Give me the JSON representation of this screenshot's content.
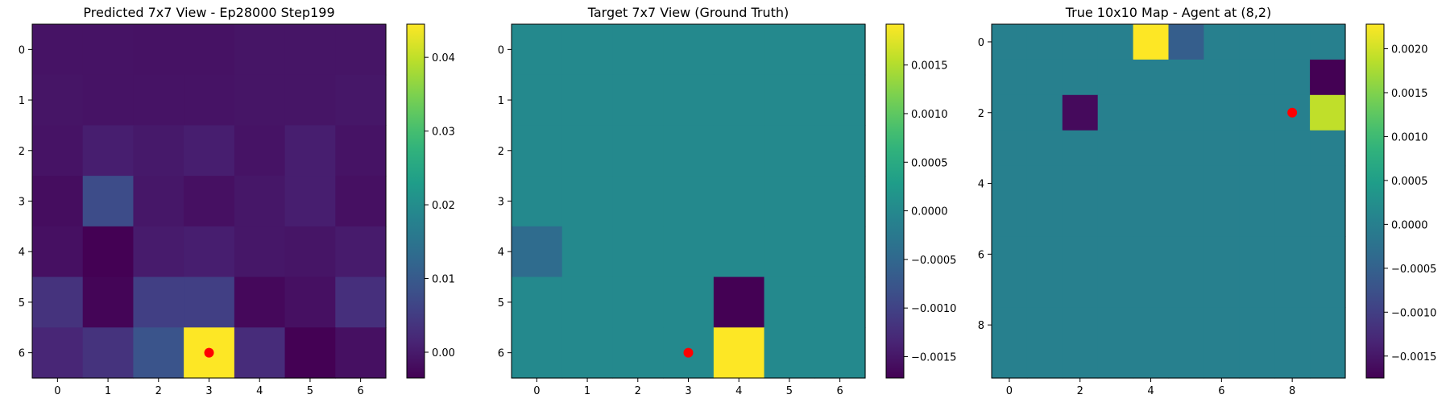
{
  "chart_data": [
    {
      "type": "heatmap",
      "title": "Predicted 7x7 View - Ep28000 Step199",
      "x_ticks": [
        "0",
        "1",
        "2",
        "3",
        "4",
        "5",
        "6"
      ],
      "y_ticks": [
        "0",
        "1",
        "2",
        "3",
        "4",
        "5",
        "6"
      ],
      "colormap": "viridis",
      "colorbar_range": [
        -0.0035,
        0.0445
      ],
      "colorbar_ticks": [
        "0.00",
        "0.01",
        "0.02",
        "0.03",
        "0.04"
      ],
      "colorbar_tick_values": [
        0.0,
        0.01,
        0.02,
        0.03,
        0.04
      ],
      "values": [
        [
          -0.001,
          -0.001,
          -0.0012,
          -0.0012,
          -0.0008,
          -0.0008,
          -0.0008
        ],
        [
          -0.0008,
          -0.001,
          -0.001,
          -0.001,
          -0.0008,
          -0.0008,
          -0.0005
        ],
        [
          -0.001,
          0.0005,
          -0.0002,
          0.0005,
          -0.001,
          0.0005,
          -0.001
        ],
        [
          -0.0018,
          0.0075,
          -0.0005,
          -0.0015,
          -0.0005,
          0.0005,
          -0.0015
        ],
        [
          -0.0015,
          -0.0035,
          0.0,
          0.0005,
          -0.0005,
          -0.0008,
          0.0
        ],
        [
          0.0035,
          -0.003,
          0.0055,
          0.0055,
          -0.0025,
          -0.0015,
          0.003
        ],
        [
          0.0015,
          0.0035,
          0.009,
          0.0445,
          0.0025,
          -0.0035,
          -0.0015
        ]
      ],
      "agent_marker": {
        "x": 3,
        "y": 6,
        "color": "#ff0000"
      }
    },
    {
      "type": "heatmap",
      "title": "Target 7x7 View (Ground Truth)",
      "x_ticks": [
        "0",
        "1",
        "2",
        "3",
        "4",
        "5",
        "6"
      ],
      "y_ticks": [
        "0",
        "1",
        "2",
        "3",
        "4",
        "5",
        "6"
      ],
      "colormap": "viridis",
      "colorbar_range": [
        -0.00172,
        0.00192
      ],
      "colorbar_ticks": [
        "−0.0015",
        "−0.0010",
        "−0.0005",
        "0.0000",
        "0.0005",
        "0.0010",
        "0.0015"
      ],
      "colorbar_tick_values": [
        -0.0015,
        -0.001,
        -0.0005,
        0.0,
        0.0005,
        0.001,
        0.0015
      ],
      "values": [
        [
          0,
          0,
          0,
          0,
          0,
          0,
          0
        ],
        [
          0,
          0,
          0,
          0,
          0,
          0,
          0
        ],
        [
          0,
          0,
          0,
          0,
          0,
          0,
          0
        ],
        [
          0,
          0,
          0,
          0,
          0,
          0,
          0
        ],
        [
          -0.00045,
          0,
          0,
          0,
          0,
          0,
          0
        ],
        [
          0,
          0,
          0,
          0,
          -0.00172,
          0,
          0
        ],
        [
          0,
          0,
          0,
          0,
          0.00192,
          0,
          0
        ]
      ],
      "agent_marker": {
        "x": 3,
        "y": 6,
        "color": "#ff0000"
      }
    },
    {
      "type": "heatmap",
      "title": "True 10x10 Map - Agent at (8,2)",
      "x_ticks": [
        "0",
        "2",
        "4",
        "6",
        "8"
      ],
      "x_tick_values": [
        0,
        2,
        4,
        6,
        8
      ],
      "y_ticks": [
        "0",
        "2",
        "4",
        "6",
        "8"
      ],
      "y_tick_values": [
        0,
        2,
        4,
        6,
        8
      ],
      "colormap": "viridis",
      "colorbar_range": [
        -0.00175,
        0.00228
      ],
      "colorbar_ticks": [
        "−0.0015",
        "−0.0010",
        "−0.0005",
        "0.0000",
        "0.0005",
        "0.0010",
        "0.0015",
        "0.0020"
      ],
      "colorbar_tick_values": [
        -0.0015,
        -0.001,
        -0.0005,
        0.0,
        0.0005,
        0.001,
        0.0015,
        0.002
      ],
      "values": [
        [
          0,
          0,
          0,
          0,
          0.00228,
          -0.00055,
          0,
          0,
          0,
          0
        ],
        [
          0,
          0,
          0,
          0,
          0,
          0,
          0,
          0,
          0,
          -0.00175
        ],
        [
          0,
          0,
          -0.00165,
          0,
          0,
          0,
          0,
          0,
          0,
          0.0019
        ],
        [
          0,
          0,
          0,
          0,
          0,
          0,
          0,
          0,
          0,
          0
        ],
        [
          0,
          0,
          0,
          0,
          0,
          0,
          0,
          0,
          0,
          0
        ],
        [
          0,
          0,
          0,
          0,
          0,
          0,
          0,
          0,
          0,
          0
        ],
        [
          0,
          0,
          0,
          0,
          0,
          0,
          0,
          0,
          0,
          0
        ],
        [
          0,
          0,
          0,
          0,
          0,
          0,
          0,
          0,
          0,
          0
        ],
        [
          0,
          0,
          0,
          0,
          0,
          0,
          0,
          0,
          0,
          0
        ],
        [
          0,
          0,
          0,
          0,
          0,
          0,
          0,
          0,
          0,
          0
        ]
      ],
      "agent_marker": {
        "x": 8,
        "y": 2,
        "color": "#ff0000"
      }
    }
  ]
}
